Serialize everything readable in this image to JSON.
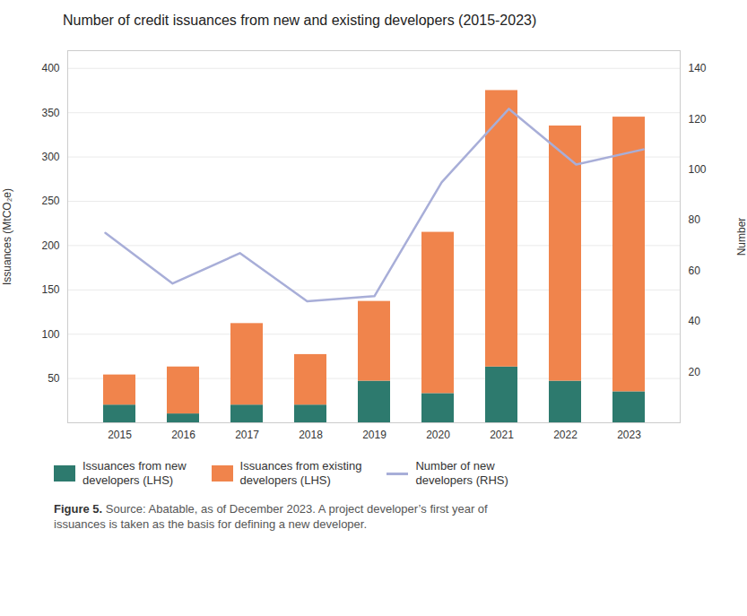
{
  "chart_data": {
    "type": "bar",
    "title": "Number of credit issuances from new and existing developers (2015-2023)",
    "categories": [
      "2015",
      "2016",
      "2017",
      "2018",
      "2019",
      "2020",
      "2021",
      "2022",
      "2023"
    ],
    "series": [
      {
        "name": "Issuances from new\ndevelopers (LHS)",
        "color": "#2d7a6e",
        "values": [
          20,
          10,
          20,
          20,
          47,
          33,
          63,
          47,
          35
        ]
      },
      {
        "name": "Issuances from existing\ndevelopers (LHS)",
        "color": "#f0844c",
        "values": [
          34,
          53,
          92,
          57,
          90,
          182,
          312,
          288,
          310
        ]
      },
      {
        "name": "Number of new\ndevelopers (RHS)",
        "type": "line",
        "axis": "y2",
        "color": "#a8aed8",
        "values": [
          75,
          55,
          67,
          48,
          50,
          95,
          124,
          102,
          108
        ]
      }
    ],
    "stacked": true,
    "ylabel": "Issuances (MtCO₂e)",
    "y2label": "Number",
    "ylim": [
      0,
      420
    ],
    "yticks": [
      50,
      100,
      150,
      200,
      250,
      300,
      350,
      400
    ],
    "y2lim": [
      0,
      147
    ],
    "y2ticks": [
      20,
      40,
      60,
      80,
      100,
      120,
      140
    ],
    "grid": true,
    "legend": "bottom",
    "caption": {
      "label": "Figure 5.",
      "text": " Source: Abatable, as of December 2023. A project developer’s first year of\nissuances is taken as the basis for defining a new developer."
    }
  }
}
